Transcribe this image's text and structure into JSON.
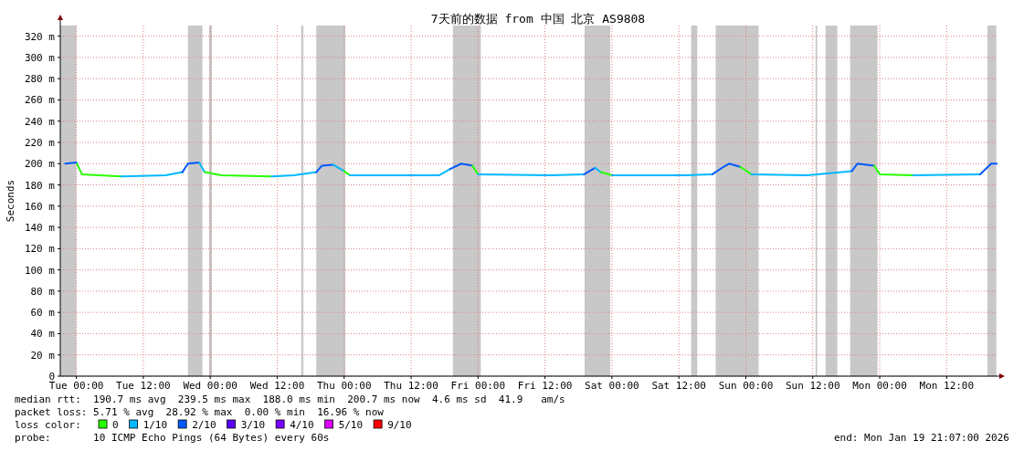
{
  "chart_data": {
    "type": "line",
    "title": "7天前的数据 from 中国 北京 AS9808",
    "ylabel": "Seconds",
    "xlim": [
      "2026-01-12T21:07",
      "2026-01-19T21:07"
    ],
    "xticks": [
      {
        "value": "2026-01-13T00:00",
        "label": "Tue 00:00"
      },
      {
        "value": "2026-01-13T12:00",
        "label": "Tue 12:00"
      },
      {
        "value": "2026-01-14T00:00",
        "label": "Wed 00:00"
      },
      {
        "value": "2026-01-14T12:00",
        "label": "Wed 12:00"
      },
      {
        "value": "2026-01-15T00:00",
        "label": "Thu 00:00"
      },
      {
        "value": "2026-01-15T12:00",
        "label": "Thu 12:00"
      },
      {
        "value": "2026-01-16T00:00",
        "label": "Fri 00:00"
      },
      {
        "value": "2026-01-16T12:00",
        "label": "Fri 12:00"
      },
      {
        "value": "2026-01-17T00:00",
        "label": "Sat 00:00"
      },
      {
        "value": "2026-01-17T12:00",
        "label": "Sat 12:00"
      },
      {
        "value": "2026-01-18T00:00",
        "label": "Sun 00:00"
      },
      {
        "value": "2026-01-18T12:00",
        "label": "Sun 12:00"
      },
      {
        "value": "2026-01-19T00:00",
        "label": "Mon 00:00"
      },
      {
        "value": "2026-01-19T12:00",
        "label": "Mon 12:00"
      }
    ],
    "ylim": [
      0,
      330
    ],
    "yticks": [
      0,
      {
        "value": 20,
        "label": "20 m"
      },
      {
        "value": 40,
        "label": "40 m"
      },
      {
        "value": 60,
        "label": "60 m"
      },
      {
        "value": 80,
        "label": "80 m"
      },
      {
        "value": 100,
        "label": "100 m"
      },
      {
        "value": 120,
        "label": "120 m"
      },
      {
        "value": 140,
        "label": "140 m"
      },
      {
        "value": 160,
        "label": "160 m"
      },
      {
        "value": 180,
        "label": "180 m"
      },
      {
        "value": 200,
        "label": "200 m"
      },
      {
        "value": 220,
        "label": "220 m"
      },
      {
        "value": 240,
        "label": "240 m"
      },
      {
        "value": 260,
        "label": "260 m"
      },
      {
        "value": 280,
        "label": "280 m"
      },
      {
        "value": 300,
        "label": "300 m"
      },
      {
        "value": 320,
        "label": "320 m"
      }
    ],
    "grid": true,
    "legend": "bottom",
    "legend_title": "loss color:",
    "series": [
      {
        "name": "0",
        "color": "#26ff00",
        "x": [
          "2026-01-13T00:00",
          "2026-01-13T01:00",
          "2026-01-13T08:00"
        ],
        "values": [
          201,
          190,
          188
        ]
      },
      {
        "name": "1/10",
        "color": "#00b8ff",
        "x": [
          "2026-01-13T08:00",
          "2026-01-13T16:00",
          "2026-01-13T19:00"
        ],
        "values": [
          188,
          189,
          192
        ]
      },
      {
        "name": "2/10",
        "color": "#0059ff",
        "x": [
          "2026-01-12T22:00",
          "2026-01-13T00:00"
        ],
        "values": [
          200,
          201
        ]
      },
      {
        "name": "3/10",
        "color": "#5e00ff"
      },
      {
        "name": "4/10",
        "color": "#7e00ff"
      },
      {
        "name": "5/10",
        "color": "#dd00ff"
      },
      {
        "name": "9/10",
        "color": "#ff0000"
      },
      {
        "color": "#0059ff",
        "x": [
          "2026-01-13T19:00",
          "2026-01-13T20:00",
          "2026-01-13T22:00"
        ],
        "values": [
          192,
          200,
          201
        ]
      },
      {
        "color": "#00b8ff",
        "x": [
          "2026-01-13T22:00",
          "2026-01-13T23:00"
        ],
        "values": [
          201,
          192
        ]
      },
      {
        "color": "#26ff00",
        "x": [
          "2026-01-13T23:00",
          "2026-01-14T02:00",
          "2026-01-14T11:00"
        ],
        "values": [
          192,
          189,
          188
        ]
      },
      {
        "color": "#00b8ff",
        "x": [
          "2026-01-14T11:00",
          "2026-01-14T15:00",
          "2026-01-14T19:00"
        ],
        "values": [
          188,
          189,
          192
        ]
      },
      {
        "color": "#0059ff",
        "x": [
          "2026-01-14T19:00",
          "2026-01-14T20:00",
          "2026-01-14T22:00"
        ],
        "values": [
          192,
          198,
          199
        ]
      },
      {
        "color": "#00b8ff",
        "x": [
          "2026-01-14T22:00",
          "2026-01-15T00:00"
        ],
        "values": [
          199,
          193
        ]
      },
      {
        "color": "#26ff00",
        "x": [
          "2026-01-15T00:00",
          "2026-01-15T01:00"
        ],
        "values": [
          193,
          189
        ]
      },
      {
        "color": "#00b8ff",
        "x": [
          "2026-01-15T01:00",
          "2026-01-15T17:00",
          "2026-01-15T19:00"
        ],
        "values": [
          189,
          189,
          195
        ]
      },
      {
        "color": "#0059ff",
        "x": [
          "2026-01-15T19:00",
          "2026-01-15T21:00",
          "2026-01-15T23:00"
        ],
        "values": [
          195,
          200,
          198
        ]
      },
      {
        "color": "#26ff00",
        "x": [
          "2026-01-15T23:00",
          "2026-01-16T00:00"
        ],
        "values": [
          198,
          190
        ]
      },
      {
        "color": "#00b8ff",
        "x": [
          "2026-01-16T00:00",
          "2026-01-16T13:00",
          "2026-01-16T19:00"
        ],
        "values": [
          190,
          189,
          190
        ]
      },
      {
        "color": "#0059ff",
        "x": [
          "2026-01-16T19:00",
          "2026-01-16T21:00"
        ],
        "values": [
          190,
          196
        ]
      },
      {
        "color": "#00b8ff",
        "x": [
          "2026-01-16T21:00",
          "2026-01-16T22:00"
        ],
        "values": [
          196,
          192
        ]
      },
      {
        "color": "#26ff00",
        "x": [
          "2026-01-16T22:00",
          "2026-01-17T00:00"
        ],
        "values": [
          192,
          189
        ]
      },
      {
        "color": "#00b8ff",
        "x": [
          "2026-01-17T00:00",
          "2026-01-17T13:00",
          "2026-01-17T18:00"
        ],
        "values": [
          189,
          189,
          190
        ]
      },
      {
        "color": "#0059ff",
        "x": [
          "2026-01-17T18:00",
          "2026-01-17T20:00",
          "2026-01-17T21:00",
          "2026-01-17T23:00"
        ],
        "values": [
          190,
          197,
          200,
          197
        ]
      },
      {
        "color": "#26ff00",
        "x": [
          "2026-01-17T23:00",
          "2026-01-18T01:00"
        ],
        "values": [
          197,
          190
        ]
      },
      {
        "color": "#00b8ff",
        "x": [
          "2026-01-18T01:00",
          "2026-01-18T11:00",
          "2026-01-18T19:00"
        ],
        "values": [
          190,
          189,
          193
        ]
      },
      {
        "color": "#0059ff",
        "x": [
          "2026-01-18T19:00",
          "2026-01-18T20:00",
          "2026-01-18T23:00"
        ],
        "values": [
          193,
          200,
          198
        ]
      },
      {
        "color": "#26ff00",
        "x": [
          "2026-01-18T23:00",
          "2026-01-19T00:00",
          "2026-01-19T06:00"
        ],
        "values": [
          198,
          190,
          189
        ]
      },
      {
        "color": "#00b8ff",
        "x": [
          "2026-01-19T06:00",
          "2026-01-19T18:00"
        ],
        "values": [
          189,
          190
        ]
      },
      {
        "color": "#0059ff",
        "x": [
          "2026-01-19T18:00",
          "2026-01-19T20:00",
          "2026-01-19T21:00"
        ],
        "values": [
          190,
          200,
          200
        ]
      }
    ],
    "bands": [
      {
        "axis": "x",
        "from": "2026-01-12T21:07",
        "to": "2026-01-13T00:00",
        "color": "#c8c8c8"
      },
      {
        "axis": "x",
        "from": "2026-01-13T20:00",
        "to": "2026-01-13T22:36",
        "color": "#c8c8c8"
      },
      {
        "axis": "x",
        "from": "2026-01-13T23:48",
        "to": "2026-01-14T00:18",
        "color": "#c8c8c8"
      },
      {
        "axis": "x",
        "from": "2026-01-14T16:18",
        "to": "2026-01-14T16:42",
        "color": "#c8c8c8"
      },
      {
        "axis": "x",
        "from": "2026-01-14T19:00",
        "to": "2026-01-15T00:12",
        "color": "#c8c8c8"
      },
      {
        "axis": "x",
        "from": "2026-01-15T19:30",
        "to": "2026-01-16T00:30",
        "color": "#c8c8c8"
      },
      {
        "axis": "x",
        "from": "2026-01-16T19:06",
        "to": "2026-01-16T23:42",
        "color": "#c8c8c8"
      },
      {
        "axis": "x",
        "from": "2026-01-17T14:12",
        "to": "2026-01-17T15:18",
        "color": "#c8c8c8"
      },
      {
        "axis": "x",
        "from": "2026-01-17T18:36",
        "to": "2026-01-18T02:18",
        "color": "#c8c8c8"
      },
      {
        "axis": "x",
        "from": "2026-01-18T12:30",
        "to": "2026-01-18T12:48",
        "color": "#c8c8c8"
      },
      {
        "axis": "x",
        "from": "2026-01-18T14:18",
        "to": "2026-01-18T16:24",
        "color": "#c8c8c8"
      },
      {
        "axis": "x",
        "from": "2026-01-18T18:42",
        "to": "2026-01-18T23:36",
        "color": "#c8c8c8"
      },
      {
        "axis": "x",
        "from": "2026-01-19T19:18",
        "to": "2026-01-19T20:54",
        "color": "#c8c8c8"
      }
    ],
    "annotations": [
      "median rtt:  190.7 ms avg  239.5 ms max  188.0 ms min  200.7 ms now  4.6 ms sd  41.9   am/s",
      "packet loss: 5.71 % avg  28.92 % max  0.00 % min  16.96 % now",
      "probe:       10 ICMP Echo Pings (64 Bytes) every 60s",
      "end: Mon Jan 19 21:07:00 2026"
    ]
  }
}
